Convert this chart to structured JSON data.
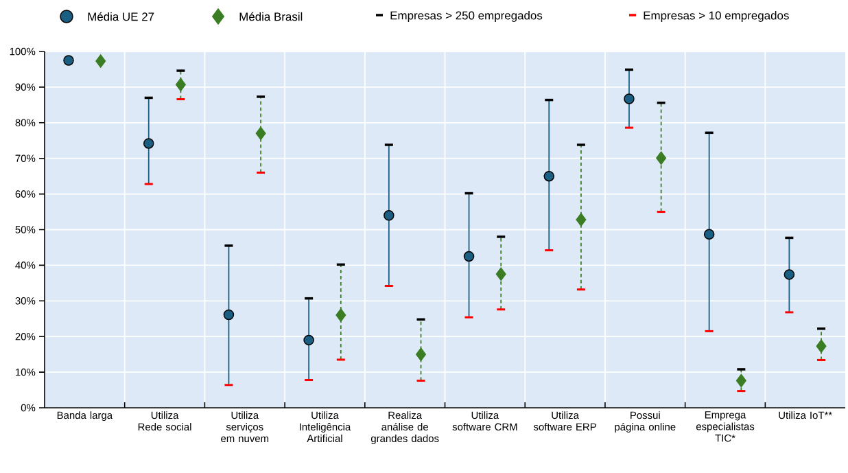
{
  "chart_data": {
    "type": "scatter",
    "categories": [
      "Banda larga",
      "Utiliza Rede social",
      "Utiliza serviços em nuvem",
      "Utiliza Inteligência Artificial",
      "Realiza análise de grandes dados",
      "Utiliza software CRM",
      "Utiliza software ERP",
      "Possui página online",
      "Emprega especialistas TIC*",
      "Utiliza IoT**"
    ],
    "series": [
      {
        "name": "Média UE 27",
        "color": "#1b5e83",
        "marker": "circle",
        "line_style": "solid",
        "values": [
          97.5,
          74.2,
          26.1,
          19,
          54,
          42.5,
          65,
          86.7,
          48.7,
          37.4
        ],
        "errors": [
          null,
          [
            62.8,
            87
          ],
          [
            6.4,
            45.5
          ],
          [
            7.8,
            30.7
          ],
          [
            34.2,
            73.8
          ],
          [
            25.4,
            60.2
          ],
          [
            44.2,
            86.4
          ],
          [
            78.6,
            94.9
          ],
          [
            21.5,
            77.2
          ],
          [
            26.8,
            47.7
          ]
        ]
      },
      {
        "name": "Média Brasil",
        "color": "#3b7d23",
        "marker": "diamond",
        "line_style": "dashed",
        "values": [
          97.3,
          90.7,
          77,
          26,
          15,
          37.5,
          52.8,
          70.1,
          7.6,
          17.3
        ],
        "errors": [
          null,
          [
            86.6,
            94.6
          ],
          [
            66,
            87.3
          ],
          [
            13.5,
            40.2
          ],
          [
            7.6,
            24.8
          ],
          [
            27.6,
            48
          ],
          [
            33.2,
            73.8
          ],
          [
            55,
            85.6
          ],
          [
            4.7,
            10.8
          ],
          [
            13.4,
            22.2
          ]
        ]
      }
    ],
    "annotations": [
      "Empresas > 250 empregados",
      "Empresas > 10 empregados"
    ],
    "ylim": [
      0,
      100
    ],
    "yticks": [
      {
        "value": 0,
        "label": "0%"
      },
      {
        "value": 10,
        "label": "10%"
      },
      {
        "value": 20,
        "label": "20%"
      },
      {
        "value": 30,
        "label": "30%"
      },
      {
        "value": 40,
        "label": "40%"
      },
      {
        "value": 50,
        "label": "50%"
      },
      {
        "value": 60,
        "label": "60%"
      },
      {
        "value": 70,
        "label": "70%"
      },
      {
        "value": 80,
        "label": "80%"
      },
      {
        "value": 90,
        "label": "90%"
      },
      {
        "value": 100,
        "label": "100%"
      }
    ],
    "grid": true,
    "legend": "top"
  }
}
